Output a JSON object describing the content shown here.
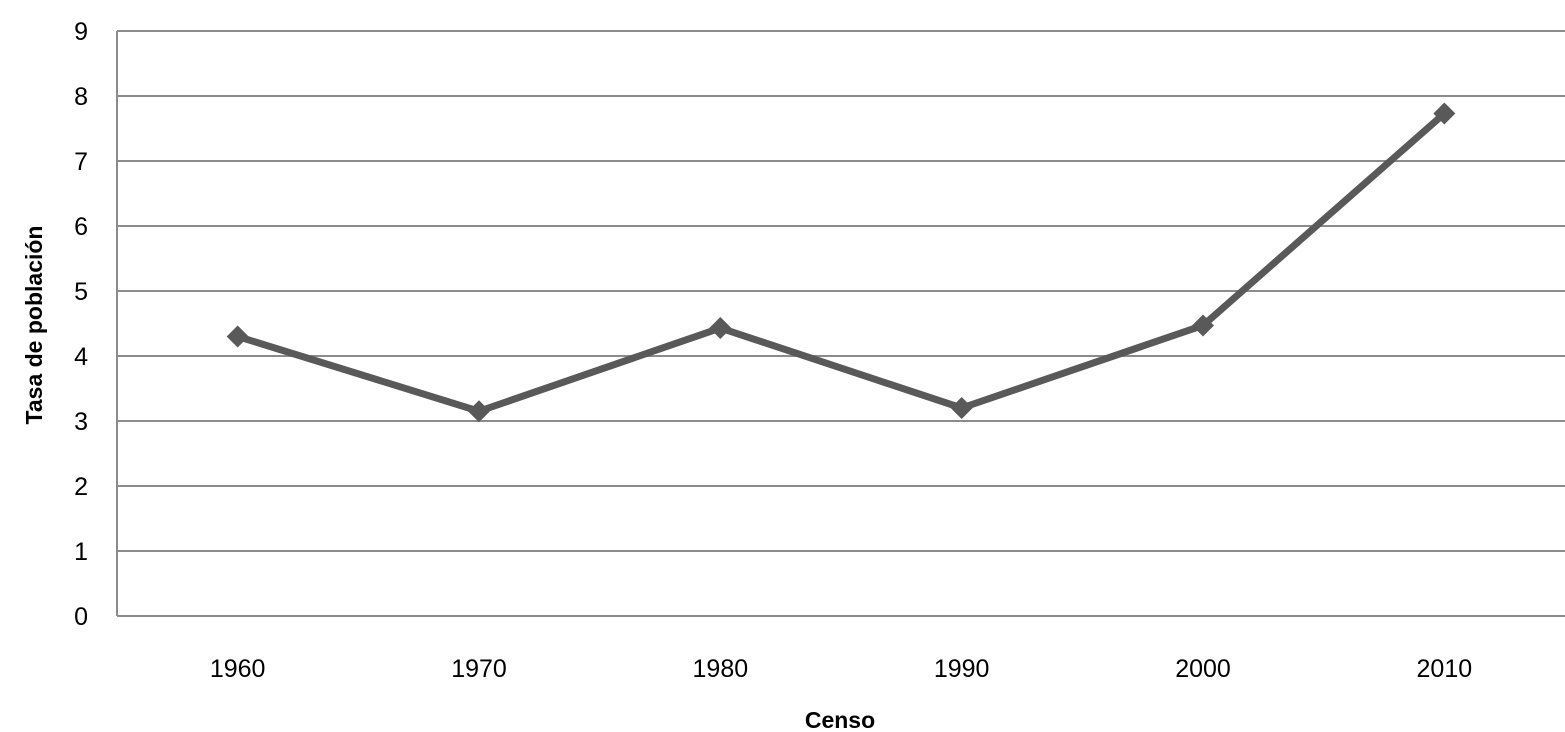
{
  "chart_data": {
    "type": "line",
    "title": "",
    "xlabel": "Censo",
    "ylabel": "Tasa de población",
    "categories": [
      "1960",
      "1970",
      "1980",
      "1990",
      "2000",
      "2010"
    ],
    "series": [
      {
        "values": [
          4.3,
          3.15,
          4.43,
          3.2,
          4.47,
          7.73
        ]
      }
    ],
    "y_ticks": [
      "0",
      "1",
      "2",
      "3",
      "4",
      "5",
      "6",
      "7",
      "8",
      "9"
    ],
    "ylim": [
      0,
      9
    ],
    "grid": true,
    "legend": "none",
    "marker": "diamond",
    "colors": {
      "line": "#595959",
      "grid": "#8c8c8c",
      "axis": "#8c8c8c"
    }
  }
}
